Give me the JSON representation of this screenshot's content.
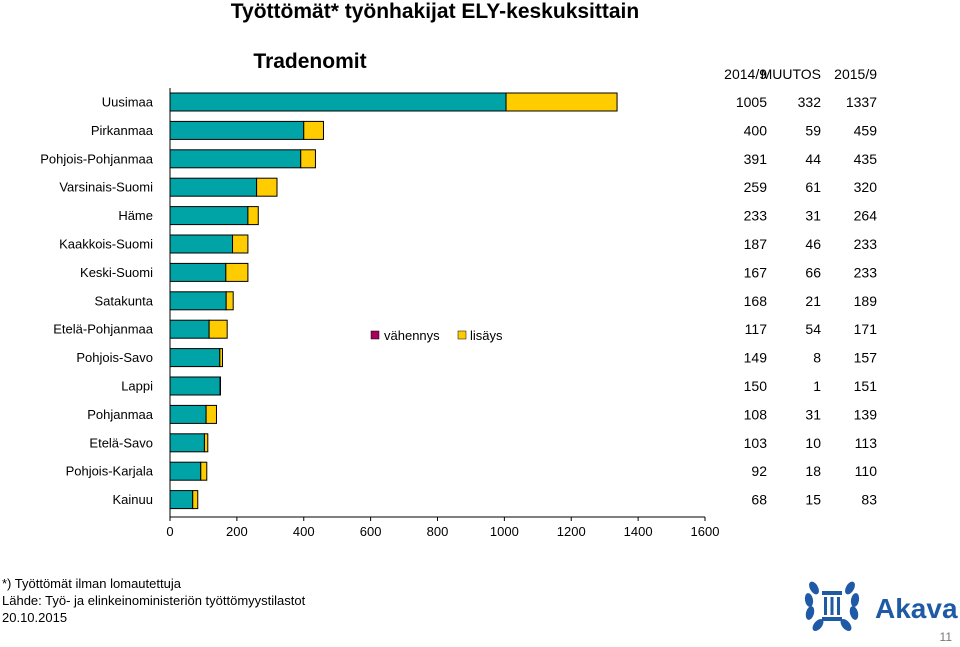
{
  "title": "Työttömät* työnhakijat ELY-keskuksittain",
  "chart_data": {
    "type": "bar",
    "orientation": "horizontal",
    "stacked": true,
    "title": "Tradenomit",
    "categories": [
      "Uusimaa",
      "Pirkanmaa",
      "Pohjois-Pohjanmaa",
      "Varsinais-Suomi",
      "Häme",
      "Kaakkois-Suomi",
      "Keski-Suomi",
      "Satakunta",
      "Etelä-Pohjanmaa",
      "Pohjois-Savo",
      "Lappi",
      "Pohjanmaa",
      "Etelä-Savo",
      "Pohjois-Karjala",
      "Kainuu"
    ],
    "series": [
      {
        "values": [
          1005,
          400,
          391,
          259,
          233,
          187,
          167,
          168,
          117,
          149,
          150,
          108,
          103,
          92,
          68
        ],
        "color": "#00a4a6"
      },
      {
        "name": "vähennys",
        "values": [
          0,
          0,
          0,
          0,
          0,
          0,
          0,
          0,
          0,
          0,
          0,
          0,
          0,
          0,
          0
        ],
        "color": "#a6005a"
      },
      {
        "name": "lisäys",
        "values": [
          332,
          59,
          44,
          61,
          31,
          46,
          66,
          21,
          54,
          8,
          1,
          31,
          10,
          18,
          15
        ],
        "color": "#ffcc00"
      }
    ],
    "xlim": [
      0,
      1600
    ],
    "xticks": [
      "0",
      "200",
      "400",
      "600",
      "800",
      "1000",
      "1200",
      "1400",
      "1600"
    ],
    "legend_placement": "center",
    "grid": false,
    "table": {
      "headers": [
        "2014/9",
        "MUUTOS",
        "2015/9"
      ],
      "rows": [
        [
          "1005",
          "332",
          "1337"
        ],
        [
          "400",
          "59",
          "459"
        ],
        [
          "391",
          "44",
          "435"
        ],
        [
          "259",
          "61",
          "320"
        ],
        [
          "233",
          "31",
          "264"
        ],
        [
          "187",
          "46",
          "233"
        ],
        [
          "167",
          "66",
          "233"
        ],
        [
          "168",
          "21",
          "189"
        ],
        [
          "117",
          "54",
          "171"
        ],
        [
          "149",
          "8",
          "157"
        ],
        [
          "150",
          "1",
          "151"
        ],
        [
          "108",
          "31",
          "139"
        ],
        [
          "103",
          "10",
          "113"
        ],
        [
          "92",
          "18",
          "110"
        ],
        [
          "68",
          "15",
          "83"
        ]
      ]
    }
  },
  "footnotes": {
    "note": "*) Työttömät ilman lomautettuja",
    "source": "Lähde: Työ- ja elinkeinoministeriön työttömyystilastot",
    "date": "20.10.2015"
  },
  "logo": {
    "text": "Akava",
    "color": "#1f5aa6"
  },
  "page_number": "11"
}
